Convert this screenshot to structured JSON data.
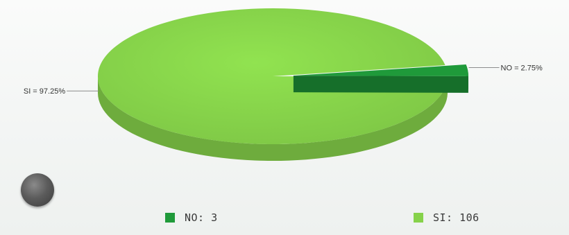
{
  "chart_data": {
    "type": "pie",
    "style": "3d",
    "slices": [
      {
        "name": "NO",
        "value": 3,
        "percent": 2.75,
        "label": "NO = 2.75%",
        "color": "#1f9a3a"
      },
      {
        "name": "SI",
        "value": 106,
        "percent": 97.25,
        "label": "SI = 97.25%",
        "color": "#86d24a"
      }
    ],
    "legend": {
      "placement": "bottom",
      "items": [
        {
          "label": "NO:  3",
          "color": "#1f9a3a"
        },
        {
          "label": "SI:  106",
          "color": "#86d24a"
        }
      ]
    }
  }
}
